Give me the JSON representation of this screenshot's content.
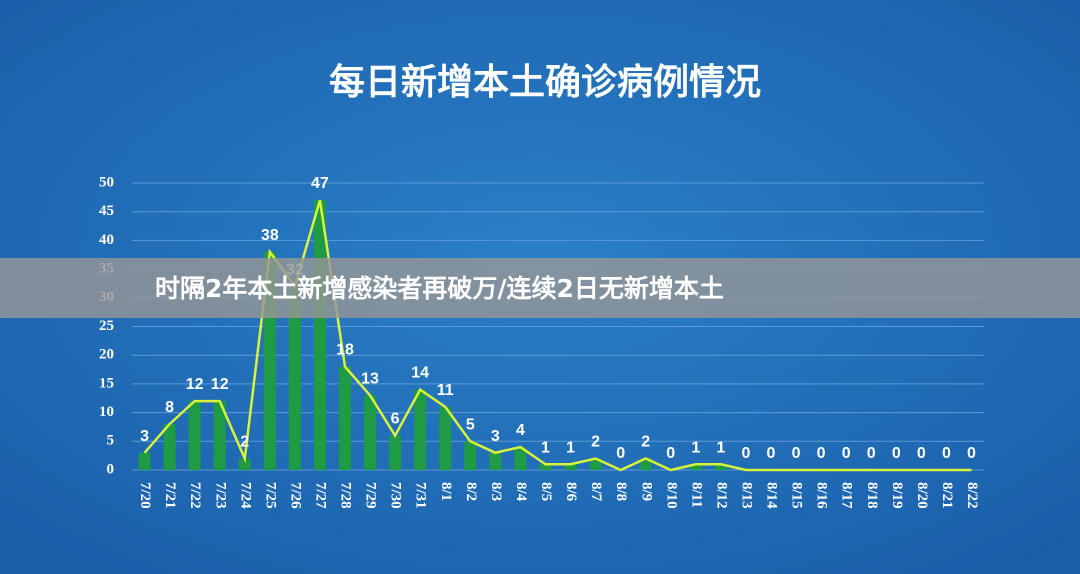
{
  "chart_data": {
    "type": "combo",
    "title": "每日新增本土确诊病例情况",
    "categories": [
      "7/20",
      "7/21",
      "7/22",
      "7/23",
      "7/24",
      "7/25",
      "7/26",
      "7/27",
      "7/28",
      "7/29",
      "7/30",
      "7/31",
      "8/1",
      "8/2",
      "8/3",
      "8/4",
      "8/5",
      "8/6",
      "8/7",
      "8/8",
      "8/9",
      "8/10",
      "8/11",
      "8/12",
      "8/13",
      "8/14",
      "8/15",
      "8/16",
      "8/17",
      "8/18",
      "8/19",
      "8/20",
      "8/21",
      "8/22"
    ],
    "values": [
      3,
      8,
      12,
      12,
      2,
      38,
      32,
      47,
      18,
      13,
      6,
      14,
      11,
      5,
      3,
      4,
      1,
      1,
      2,
      0,
      2,
      0,
      1,
      1,
      0,
      0,
      0,
      0,
      0,
      0,
      0,
      0,
      0,
      0
    ],
    "bar_color": "#1f9a45",
    "line_color": "#d9f23a",
    "ylim": [
      0,
      50
    ],
    "yticks": [
      0,
      5,
      10,
      15,
      20,
      25,
      30,
      35,
      40,
      45,
      50
    ],
    "grid": true
  },
  "banner": "时隔2年本土新增感染者再破万/连续2日无新增本土"
}
